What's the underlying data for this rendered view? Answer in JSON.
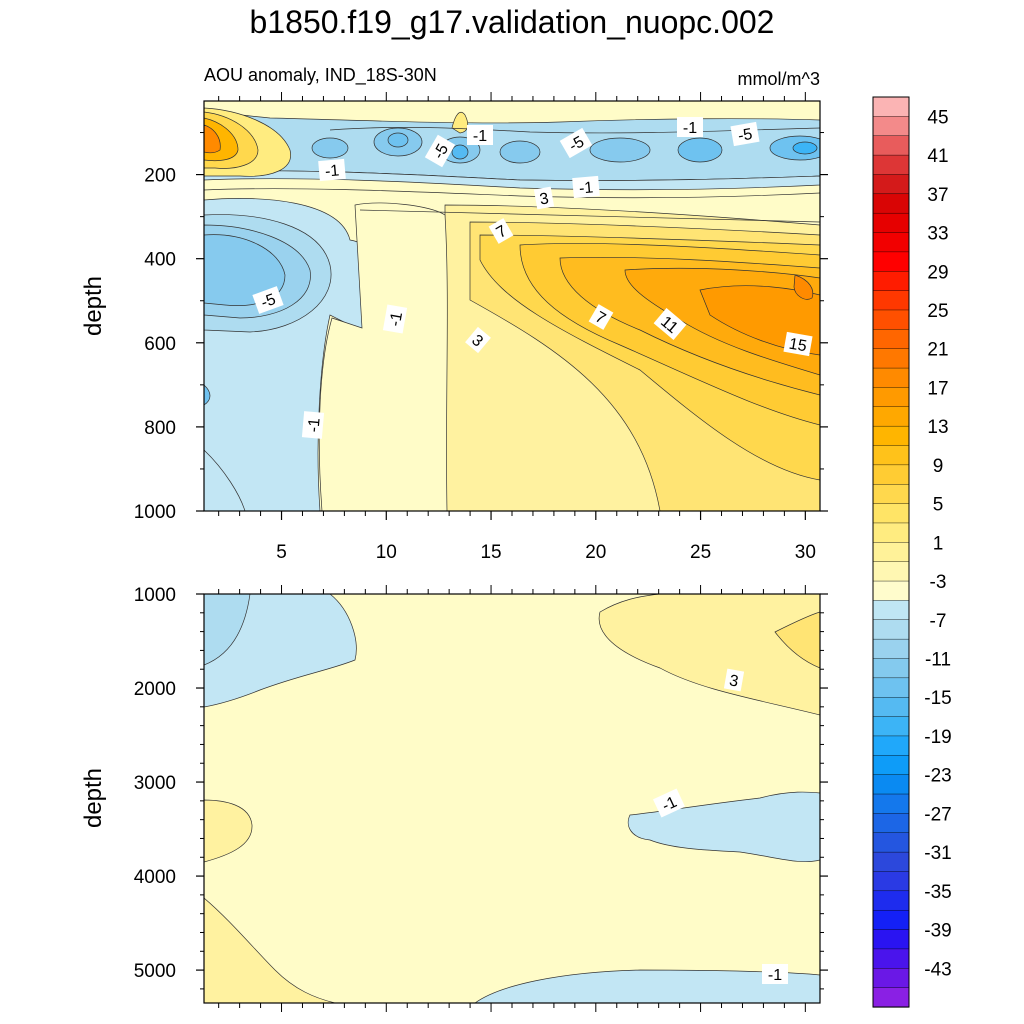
{
  "title": "b1850.f19_g17.validation_nuopc.002",
  "subtitle_left": "AOU anomaly, IND_18S-30N",
  "subtitle_right": "mmol/m^3",
  "chart_data": [
    {
      "type": "heatmap",
      "panel": "upper",
      "ylabel": "depth",
      "y_ticks": [
        "200",
        "400",
        "600",
        "800",
        "1000"
      ],
      "x_ticks": [
        "5",
        "10",
        "15",
        "20",
        "25",
        "30"
      ],
      "xlim": [
        1.3,
        30.7
      ],
      "ylim": [
        1000,
        25
      ],
      "contour_labels": [
        "-1",
        "-5",
        "-1",
        "-5",
        "-1",
        "-5",
        "-1",
        "-1",
        "3",
        "7",
        "-5",
        "-1",
        "7",
        "11",
        "3",
        "15",
        "-1"
      ]
    },
    {
      "type": "heatmap",
      "panel": "lower",
      "ylabel": "depth",
      "y_ticks": [
        "1000",
        "2000",
        "3000",
        "4000",
        "5000"
      ],
      "xlim": [
        1.3,
        30.7
      ],
      "ylim": [
        5350,
        1000
      ],
      "contour_labels": [
        "3",
        "-1",
        "-1"
      ]
    }
  ],
  "colorbar": {
    "labels": [
      "45",
      "41",
      "37",
      "33",
      "29",
      "25",
      "21",
      "17",
      "13",
      "9",
      "5",
      "1",
      "-3",
      "-7",
      "-11",
      "-15",
      "-19",
      "-23",
      "-27",
      "-31",
      "-35",
      "-39",
      "-43"
    ],
    "colors": [
      "#FBB4B4",
      "#F38A8A",
      "#E85C5C",
      "#DD3636",
      "#D41A1A",
      "#D90505",
      "#E60000",
      "#F20000",
      "#FF0000",
      "#FF1C00",
      "#FF3800",
      "#FF5000",
      "#FF6600",
      "#FF7800",
      "#FF8A00",
      "#FF9A00",
      "#FFA800",
      "#FFB500",
      "#FFC21A",
      "#FFCC33",
      "#FFD84D",
      "#FFE466",
      "#FFEC80",
      "#FFF299",
      "#FFF7B2",
      "#FFFCCC",
      "#C0E6F4",
      "#AEDCF0",
      "#9AD2EE",
      "#84CAEE",
      "#6EC2F0",
      "#55BAF2",
      "#3CB4F6",
      "#20A8FA",
      "#0E9CF8",
      "#0A8AF2",
      "#1478EC",
      "#1C66E6",
      "#2456E0",
      "#2C48DC",
      "#2A3AE4",
      "#1E2CEE",
      "#1420F6",
      "#2A14F2",
      "#4A14EC",
      "#6A18E6",
      "#8A20E4"
    ]
  }
}
